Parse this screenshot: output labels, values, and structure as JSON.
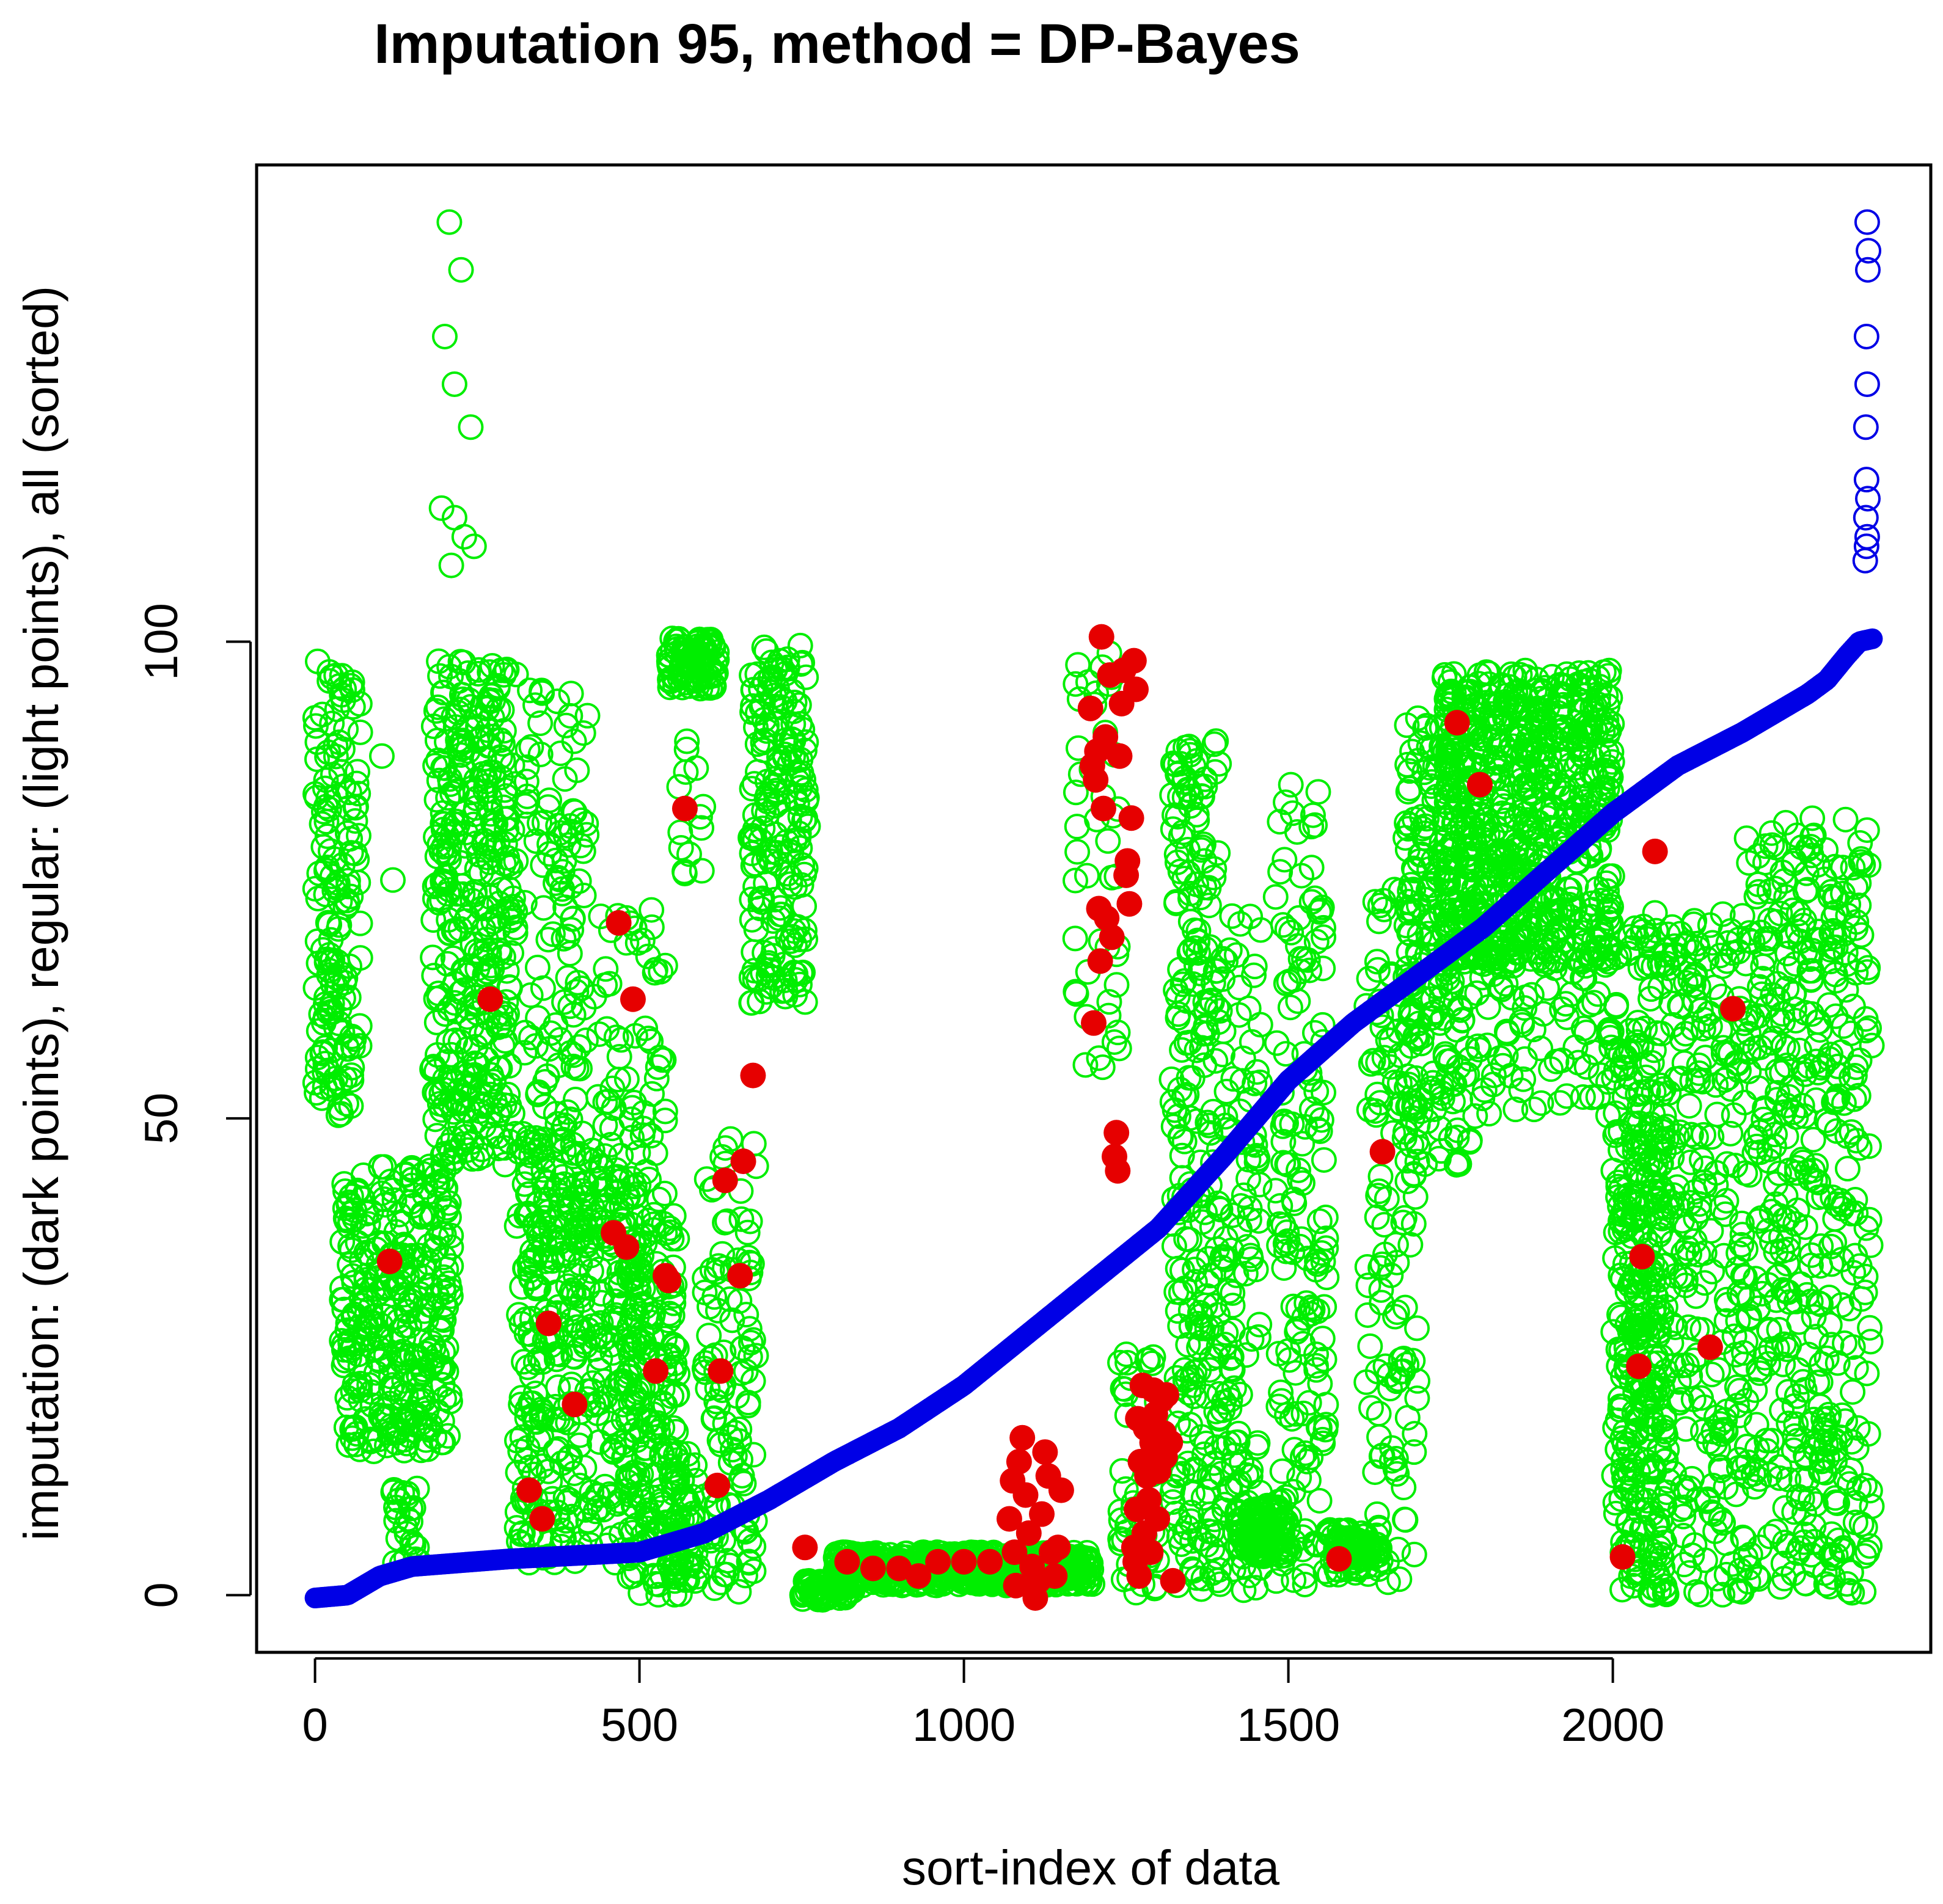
{
  "chart_data": {
    "type": "scatter",
    "title": "Imputation 95,   method = DP-Bayes",
    "xlabel": "sort-index of data",
    "ylabel": "imputation: (dark points),  regular: (light points),  all (sorted)",
    "xlim": [
      -90,
      2490
    ],
    "ylim": [
      -6,
      150
    ],
    "x_ticks": [
      0,
      500,
      1000,
      1500,
      2000
    ],
    "x_tick_labels": [
      "0",
      "500",
      "1000",
      "1500",
      "2000"
    ],
    "y_ticks": [
      0,
      50,
      100
    ],
    "y_tick_labels": [
      "0",
      "50",
      "100"
    ],
    "grid": false,
    "colors": {
      "regular": "#00ee00",
      "imputed": "#e60000",
      "sorted": "#0000e6",
      "frame": "#000000"
    },
    "series": [
      {
        "name": "all (sorted)",
        "style": "filled",
        "color": "#0000e6",
        "curve": [
          [
            0,
            -0.3
          ],
          [
            50,
            0
          ],
          [
            100,
            2
          ],
          [
            150,
            3
          ],
          [
            300,
            3.8
          ],
          [
            500,
            4.5
          ],
          [
            600,
            6.5
          ],
          [
            700,
            10
          ],
          [
            800,
            14
          ],
          [
            900,
            17.5
          ],
          [
            1000,
            22
          ],
          [
            1100,
            27.5
          ],
          [
            1200,
            33
          ],
          [
            1300,
            38.5
          ],
          [
            1400,
            46
          ],
          [
            1500,
            54
          ],
          [
            1600,
            60
          ],
          [
            1700,
            65
          ],
          [
            1800,
            70
          ],
          [
            1900,
            76
          ],
          [
            2000,
            82
          ],
          [
            2100,
            87
          ],
          [
            2200,
            90.5
          ],
          [
            2300,
            94.5
          ],
          [
            2330,
            96
          ],
          [
            2360,
            98.5
          ],
          [
            2380,
            100
          ],
          [
            2400,
            100.3
          ]
        ],
        "outliers": [
          [
            2392,
            144
          ],
          [
            2394,
            141
          ],
          [
            2393,
            139
          ],
          [
            2391,
            132
          ],
          [
            2392,
            127
          ],
          [
            2390,
            122.5
          ],
          [
            2391,
            117
          ],
          [
            2393,
            115
          ],
          [
            2390,
            113
          ],
          [
            2392,
            111
          ],
          [
            2389,
            108.5
          ],
          [
            2391,
            110
          ]
        ]
      },
      {
        "name": "regular",
        "style": "open",
        "color": "#00ee00",
        "clusters": [
          {
            "x": [
              0,
              70
            ],
            "y": [
              50,
              98
            ],
            "n": 160
          },
          {
            "x": [
              40,
              210
            ],
            "y": [
              15,
              45
            ],
            "n": 320
          },
          {
            "x": [
              120,
              160
            ],
            "y": [
              3,
              12
            ],
            "n": 25
          },
          {
            "x": [
              180,
              310
            ],
            "y": [
              45,
              98
            ],
            "n": 360
          },
          {
            "x": [
              320,
              420
            ],
            "y": [
              35,
              95
            ],
            "n": 140
          },
          {
            "x": [
              310,
              500
            ],
            "y": [
              3,
              48
            ],
            "n": 360
          },
          {
            "x": [
              430,
              540
            ],
            "y": [
              40,
              72
            ],
            "n": 70
          },
          {
            "x": [
              480,
              560
            ],
            "y": [
              0,
              40
            ],
            "n": 180
          },
          {
            "x": [
              550,
              590
            ],
            "y": [
              0,
              15
            ],
            "n": 60
          },
          {
            "x": [
              545,
              620
            ],
            "y": [
              95,
              100.5
            ],
            "n": 90
          },
          {
            "x": [
              560,
              600
            ],
            "y": [
              75,
              96
            ],
            "n": 15
          },
          {
            "x": [
              600,
              680
            ],
            "y": [
              0,
              48
            ],
            "n": 110
          },
          {
            "x": [
              670,
              760
            ],
            "y": [
              62,
              100
            ],
            "n": 190
          },
          {
            "x": [
              750,
              830
            ],
            "y": [
              -0.5,
              1.5
            ],
            "n": 60
          },
          {
            "x": [
              800,
              1200
            ],
            "y": [
              1,
              4.5
            ],
            "n": 520
          },
          {
            "x": [
              1170,
              1240
            ],
            "y": [
              55,
              100
            ],
            "n": 45
          },
          {
            "x": [
              1240,
              1300
            ],
            "y": [
              0,
              26
            ],
            "n": 50
          },
          {
            "x": [
              1320,
              1400
            ],
            "y": [
              0,
              90
            ],
            "n": 260
          },
          {
            "x": [
              1400,
              1460
            ],
            "y": [
              0,
              72
            ],
            "n": 110
          },
          {
            "x": [
              1420,
              1500
            ],
            "y": [
              4,
              10
            ],
            "n": 110
          },
          {
            "x": [
              1480,
              1560
            ],
            "y": [
              0,
              85
            ],
            "n": 160
          },
          {
            "x": [
              1560,
              1640
            ],
            "y": [
              2,
              7
            ],
            "n": 80
          },
          {
            "x": [
              1620,
              1700
            ],
            "y": [
              0,
              75
            ],
            "n": 130
          },
          {
            "x": [
              1680,
              1790
            ],
            "y": [
              45,
              92
            ],
            "n": 220
          },
          {
            "x": [
              1740,
              2000
            ],
            "y": [
              66,
              97
            ],
            "n": 650
          },
          {
            "x": [
              1790,
              2010
            ],
            "y": [
              50,
              70
            ],
            "n": 90
          },
          {
            "x": [
              2000,
              2080
            ],
            "y": [
              0,
              58
            ],
            "n": 220
          },
          {
            "x": [
              2020,
              2200
            ],
            "y": [
              0,
              72
            ],
            "n": 380
          },
          {
            "x": [
              2200,
              2400
            ],
            "y": [
              0,
              82
            ],
            "n": 480
          }
        ],
        "outliers": [
          [
            207,
            144
          ],
          [
            225,
            139
          ],
          [
            200,
            132
          ],
          [
            215,
            127
          ],
          [
            240,
            122.5
          ],
          [
            195,
            114
          ],
          [
            215,
            113
          ],
          [
            230,
            111
          ],
          [
            210,
            108
          ],
          [
            245,
            110
          ],
          [
            103,
            88
          ],
          [
            120,
            75
          ]
        ]
      },
      {
        "name": "imputation",
        "style": "filled",
        "color": "#e60000",
        "points": [
          [
            115,
            35
          ],
          [
            270,
            62.5
          ],
          [
            330,
            11
          ],
          [
            350,
            8
          ],
          [
            360,
            28.5
          ],
          [
            400,
            20
          ],
          [
            460,
            38
          ],
          [
            468,
            70.5
          ],
          [
            480,
            36.5
          ],
          [
            490,
            62.5
          ],
          [
            525,
            23.5
          ],
          [
            540,
            33.5
          ],
          [
            545,
            33
          ],
          [
            570,
            82.5
          ],
          [
            620,
            11.5
          ],
          [
            625,
            23.5
          ],
          [
            632,
            43.5
          ],
          [
            655,
            33.5
          ],
          [
            660,
            45.5
          ],
          [
            675,
            54.5
          ],
          [
            755,
            5
          ],
          [
            820,
            3.5
          ],
          [
            860,
            2.8
          ],
          [
            900,
            2.8
          ],
          [
            930,
            2
          ],
          [
            960,
            3.5
          ],
          [
            1000,
            3.5
          ],
          [
            1040,
            3.5
          ],
          [
            1070,
            8
          ],
          [
            1075,
            12
          ],
          [
            1078,
            4.5
          ],
          [
            1080,
            1
          ],
          [
            1085,
            14
          ],
          [
            1090,
            16.5
          ],
          [
            1095,
            10.5
          ],
          [
            1100,
            6.5
          ],
          [
            1105,
            3
          ],
          [
            1110,
            -0.3
          ],
          [
            1115,
            1.5
          ],
          [
            1120,
            8.5
          ],
          [
            1125,
            15
          ],
          [
            1130,
            12.5
          ],
          [
            1135,
            4.5
          ],
          [
            1140,
            2
          ],
          [
            1145,
            5
          ],
          [
            1150,
            11
          ],
          [
            1195,
            93
          ],
          [
            1198,
            87
          ],
          [
            1200,
            60
          ],
          [
            1203,
            85.5
          ],
          [
            1205,
            88.5
          ],
          [
            1208,
            72
          ],
          [
            1210,
            66.5
          ],
          [
            1212,
            100.5
          ],
          [
            1215,
            82.5
          ],
          [
            1218,
            90
          ],
          [
            1220,
            71
          ],
          [
            1225,
            96.5
          ],
          [
            1228,
            69
          ],
          [
            1232,
            46
          ],
          [
            1235,
            48.5
          ],
          [
            1237,
            44.5
          ],
          [
            1240,
            88
          ],
          [
            1243,
            93.5
          ],
          [
            1246,
            97
          ],
          [
            1250,
            75.5
          ],
          [
            1252,
            77
          ],
          [
            1255,
            72.5
          ],
          [
            1258,
            81.5
          ],
          [
            1262,
            98
          ],
          [
            1265,
            95
          ],
          [
            1262,
            5
          ],
          [
            1264,
            3.5
          ],
          [
            1266,
            9
          ],
          [
            1268,
            18.5
          ],
          [
            1270,
            2
          ],
          [
            1272,
            14
          ],
          [
            1275,
            22
          ],
          [
            1278,
            6.5
          ],
          [
            1280,
            17.5
          ],
          [
            1282,
            12.5
          ],
          [
            1285,
            10
          ],
          [
            1288,
            4.5
          ],
          [
            1290,
            16
          ],
          [
            1292,
            21.5
          ],
          [
            1295,
            19
          ],
          [
            1298,
            8
          ],
          [
            1300,
            13
          ],
          [
            1302,
            15
          ],
          [
            1305,
            20.5
          ],
          [
            1308,
            17
          ],
          [
            1310,
            14.5
          ],
          [
            1312,
            21
          ],
          [
            1318,
            16
          ],
          [
            1322,
            1.5
          ],
          [
            1578,
            3.8
          ],
          [
            1645,
            46.5
          ],
          [
            1760,
            91.5
          ],
          [
            1795,
            85
          ],
          [
            2015,
            4
          ],
          [
            2040,
            24
          ],
          [
            2045,
            35.5
          ],
          [
            2065,
            78
          ],
          [
            2150,
            26
          ],
          [
            2185,
            61.5
          ]
        ]
      }
    ]
  }
}
